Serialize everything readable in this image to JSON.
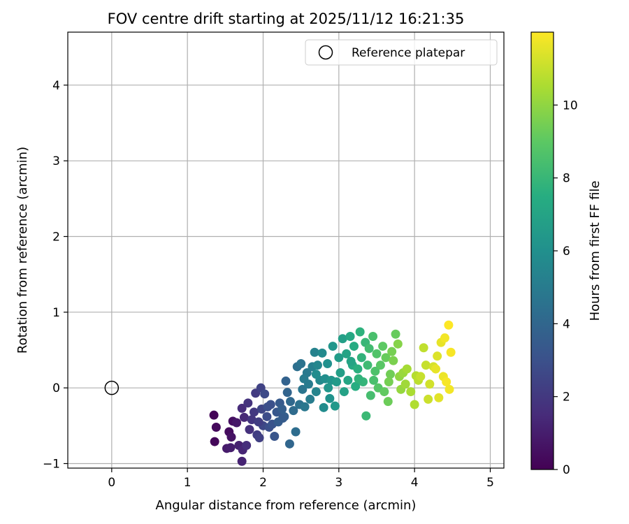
{
  "chart_data": {
    "type": "scatter",
    "title": "FOV centre drift starting at 2025/11/12 16:21:35",
    "xlabel": "Angular distance from reference (arcmin)",
    "ylabel": "Rotation from reference (arcmin)",
    "xlim": [
      -0.58,
      5.18
    ],
    "ylim": [
      -1.06,
      4.7
    ],
    "xticks": [
      "0",
      "1",
      "2",
      "3",
      "4",
      "5"
    ],
    "yticks": [
      "−1",
      "0",
      "1",
      "2",
      "3",
      "4"
    ],
    "grid": true,
    "legend": {
      "placement": "top-right",
      "entries": [
        {
          "label": "Reference platepar",
          "marker": "open-circle",
          "color": "#000000"
        }
      ]
    },
    "reference_point": {
      "x": 0.0,
      "y": 0.0
    },
    "colorbar": {
      "label": "Hours from first FF file",
      "colormap": "viridis",
      "range": [
        0,
        12
      ],
      "ticks": [
        "0",
        "2",
        "4",
        "6",
        "8",
        "10"
      ]
    },
    "points": [
      {
        "x": 1.35,
        "y": -0.36,
        "c": 0.1
      },
      {
        "x": 1.38,
        "y": -0.52,
        "c": 0.3
      },
      {
        "x": 1.36,
        "y": -0.71,
        "c": 0.2
      },
      {
        "x": 1.55,
        "y": -0.58,
        "c": 0.4
      },
      {
        "x": 1.58,
        "y": -0.65,
        "c": 0.6
      },
      {
        "x": 1.6,
        "y": -0.44,
        "c": 0.5
      },
      {
        "x": 1.52,
        "y": -0.8,
        "c": 0.9
      },
      {
        "x": 1.57,
        "y": -0.79,
        "c": 1.0
      },
      {
        "x": 1.65,
        "y": -0.46,
        "c": 0.8
      },
      {
        "x": 1.68,
        "y": -0.76,
        "c": 1.1
      },
      {
        "x": 1.72,
        "y": -0.97,
        "c": 1.2
      },
      {
        "x": 1.73,
        "y": -0.82,
        "c": 1.3
      },
      {
        "x": 1.75,
        "y": -0.39,
        "c": 1.4
      },
      {
        "x": 1.78,
        "y": -0.76,
        "c": 1.6
      },
      {
        "x": 1.72,
        "y": -0.27,
        "c": 1.5
      },
      {
        "x": 1.8,
        "y": -0.2,
        "c": 1.8
      },
      {
        "x": 1.82,
        "y": -0.55,
        "c": 1.7
      },
      {
        "x": 1.85,
        "y": -0.42,
        "c": 1.9
      },
      {
        "x": 1.88,
        "y": -0.32,
        "c": 2.0
      },
      {
        "x": 1.9,
        "y": -0.07,
        "c": 2.1
      },
      {
        "x": 1.92,
        "y": -0.62,
        "c": 2.2
      },
      {
        "x": 1.95,
        "y": -0.66,
        "c": 2.3
      },
      {
        "x": 1.97,
        "y": 0.0,
        "c": 2.4
      },
      {
        "x": 1.98,
        "y": -0.28,
        "c": 2.5
      },
      {
        "x": 2.0,
        "y": -0.5,
        "c": 2.6
      },
      {
        "x": 2.02,
        "y": -0.08,
        "c": 2.7
      },
      {
        "x": 2.05,
        "y": -0.38,
        "c": 2.8
      },
      {
        "x": 2.08,
        "y": -0.52,
        "c": 2.9
      },
      {
        "x": 2.1,
        "y": -0.22,
        "c": 3.0
      },
      {
        "x": 2.12,
        "y": -0.48,
        "c": 3.1
      },
      {
        "x": 2.15,
        "y": -0.64,
        "c": 3.2
      },
      {
        "x": 2.18,
        "y": -0.32,
        "c": 3.3
      },
      {
        "x": 2.2,
        "y": -0.45,
        "c": 3.5
      },
      {
        "x": 2.22,
        "y": -0.2,
        "c": 3.4
      },
      {
        "x": 2.25,
        "y": -0.28,
        "c": 3.6
      },
      {
        "x": 2.28,
        "y": -0.38,
        "c": 3.7
      },
      {
        "x": 2.3,
        "y": 0.09,
        "c": 3.8
      },
      {
        "x": 2.32,
        "y": -0.06,
        "c": 3.9
      },
      {
        "x": 2.35,
        "y": -0.74,
        "c": 4.0
      },
      {
        "x": 2.36,
        "y": -0.18,
        "c": 4.1
      },
      {
        "x": 2.4,
        "y": -0.3,
        "c": 4.2
      },
      {
        "x": 2.43,
        "y": -0.58,
        "c": 4.3
      },
      {
        "x": 2.45,
        "y": 0.28,
        "c": 4.4
      },
      {
        "x": 2.48,
        "y": -0.22,
        "c": 4.5
      },
      {
        "x": 2.5,
        "y": 0.32,
        "c": 4.6
      },
      {
        "x": 2.52,
        "y": -0.02,
        "c": 4.7
      },
      {
        "x": 2.55,
        "y": -0.25,
        "c": 4.8
      },
      {
        "x": 2.58,
        "y": 0.2,
        "c": 4.9
      },
      {
        "x": 2.6,
        "y": 0.05,
        "c": 5.0
      },
      {
        "x": 2.62,
        "y": -0.15,
        "c": 5.1
      },
      {
        "x": 2.65,
        "y": 0.28,
        "c": 5.2
      },
      {
        "x": 2.68,
        "y": 0.47,
        "c": 5.3
      },
      {
        "x": 2.7,
        "y": -0.05,
        "c": 5.4
      },
      {
        "x": 2.72,
        "y": 0.3,
        "c": 5.5
      },
      {
        "x": 2.75,
        "y": 0.1,
        "c": 5.6
      },
      {
        "x": 2.78,
        "y": 0.46,
        "c": 5.7
      },
      {
        "x": 2.8,
        "y": -0.26,
        "c": 5.8
      },
      {
        "x": 2.82,
        "y": 0.12,
        "c": 5.9
      },
      {
        "x": 2.85,
        "y": 0.32,
        "c": 6.0
      },
      {
        "x": 2.88,
        "y": -0.14,
        "c": 6.1
      },
      {
        "x": 2.9,
        "y": 0.1,
        "c": 6.2
      },
      {
        "x": 2.92,
        "y": 0.55,
        "c": 6.3
      },
      {
        "x": 2.95,
        "y": -0.24,
        "c": 6.4
      },
      {
        "x": 2.97,
        "y": 0.08,
        "c": 6.5
      },
      {
        "x": 3.0,
        "y": 0.4,
        "c": 6.6
      },
      {
        "x": 3.02,
        "y": 0.2,
        "c": 6.7
      },
      {
        "x": 3.05,
        "y": 0.65,
        "c": 6.8
      },
      {
        "x": 3.07,
        "y": -0.05,
        "c": 6.9
      },
      {
        "x": 3.1,
        "y": 0.45,
        "c": 7.0
      },
      {
        "x": 3.12,
        "y": 0.1,
        "c": 7.1
      },
      {
        "x": 3.15,
        "y": 0.68,
        "c": 7.2
      },
      {
        "x": 3.18,
        "y": 0.3,
        "c": 7.3
      },
      {
        "x": 3.2,
        "y": 0.55,
        "c": 7.4
      },
      {
        "x": 3.22,
        "y": 0.02,
        "c": 7.5
      },
      {
        "x": 3.25,
        "y": 0.25,
        "c": 7.6
      },
      {
        "x": 3.28,
        "y": 0.74,
        "c": 7.7
      },
      {
        "x": 3.3,
        "y": 0.4,
        "c": 7.8
      },
      {
        "x": 3.32,
        "y": 0.08,
        "c": 7.9
      },
      {
        "x": 3.35,
        "y": 0.6,
        "c": 8.0
      },
      {
        "x": 3.36,
        "y": -0.37,
        "c": 8.1
      },
      {
        "x": 3.38,
        "y": 0.3,
        "c": 8.2
      },
      {
        "x": 3.4,
        "y": 0.52,
        "c": 8.3
      },
      {
        "x": 3.42,
        "y": -0.1,
        "c": 8.4
      },
      {
        "x": 3.45,
        "y": 0.68,
        "c": 8.5
      },
      {
        "x": 3.48,
        "y": 0.22,
        "c": 8.6
      },
      {
        "x": 3.5,
        "y": 0.45,
        "c": 8.7
      },
      {
        "x": 3.52,
        "y": 0.0,
        "c": 8.8
      },
      {
        "x": 3.55,
        "y": 0.3,
        "c": 8.9
      },
      {
        "x": 3.58,
        "y": 0.55,
        "c": 9.0
      },
      {
        "x": 3.6,
        "y": -0.05,
        "c": 9.1
      },
      {
        "x": 3.62,
        "y": 0.4,
        "c": 9.2
      },
      {
        "x": 3.65,
        "y": -0.18,
        "c": 9.3
      },
      {
        "x": 3.68,
        "y": 0.18,
        "c": 9.4
      },
      {
        "x": 3.7,
        "y": 0.48,
        "c": 9.5
      },
      {
        "x": 3.72,
        "y": 0.36,
        "c": 9.6
      },
      {
        "x": 3.75,
        "y": 0.71,
        "c": 9.2
      },
      {
        "x": 3.78,
        "y": 0.58,
        "c": 9.8
      },
      {
        "x": 3.8,
        "y": 0.15,
        "c": 10.0
      },
      {
        "x": 3.82,
        "y": -0.02,
        "c": 10.1
      },
      {
        "x": 3.85,
        "y": 0.2,
        "c": 10.2
      },
      {
        "x": 3.88,
        "y": 0.05,
        "c": 10.3
      },
      {
        "x": 3.9,
        "y": 0.25,
        "c": 10.4
      },
      {
        "x": 3.95,
        "y": -0.05,
        "c": 10.5
      },
      {
        "x": 4.0,
        "y": -0.22,
        "c": 10.6
      },
      {
        "x": 4.02,
        "y": 0.16,
        "c": 10.7
      },
      {
        "x": 4.05,
        "y": 0.1,
        "c": 10.8
      },
      {
        "x": 4.12,
        "y": 0.53,
        "c": 10.9
      },
      {
        "x": 4.15,
        "y": 0.3,
        "c": 11.0
      },
      {
        "x": 4.18,
        "y": -0.15,
        "c": 11.1
      },
      {
        "x": 4.2,
        "y": 0.05,
        "c": 11.2
      },
      {
        "x": 4.25,
        "y": 0.28,
        "c": 11.3
      },
      {
        "x": 4.3,
        "y": 0.42,
        "c": 11.4
      },
      {
        "x": 4.32,
        "y": -0.13,
        "c": 11.5
      },
      {
        "x": 4.35,
        "y": 0.6,
        "c": 11.6
      },
      {
        "x": 4.38,
        "y": 0.15,
        "c": 11.7
      },
      {
        "x": 4.4,
        "y": 0.66,
        "c": 11.8
      },
      {
        "x": 4.42,
        "y": 0.08,
        "c": 11.9
      },
      {
        "x": 4.45,
        "y": 0.83,
        "c": 12.0
      },
      {
        "x": 4.46,
        "y": -0.02,
        "c": 11.8
      },
      {
        "x": 4.48,
        "y": 0.47,
        "c": 11.9
      },
      {
        "x": 2.26,
        "y": -0.4,
        "c": 3.5
      },
      {
        "x": 2.54,
        "y": 0.12,
        "c": 5.0
      },
      {
        "x": 2.86,
        "y": 0.0,
        "c": 6.3
      },
      {
        "x": 3.16,
        "y": 0.35,
        "c": 7.0
      },
      {
        "x": 3.46,
        "y": 0.1,
        "c": 8.5
      },
      {
        "x": 3.66,
        "y": 0.08,
        "c": 9.5
      },
      {
        "x": 4.08,
        "y": 0.15,
        "c": 11.0
      },
      {
        "x": 4.28,
        "y": 0.25,
        "c": 11.6
      },
      {
        "x": 2.06,
        "y": -0.25,
        "c": 2.9
      },
      {
        "x": 1.94,
        "y": -0.45,
        "c": 2.2
      },
      {
        "x": 2.7,
        "y": 0.18,
        "c": 5.8
      },
      {
        "x": 3.26,
        "y": 0.12,
        "c": 7.8
      }
    ]
  }
}
